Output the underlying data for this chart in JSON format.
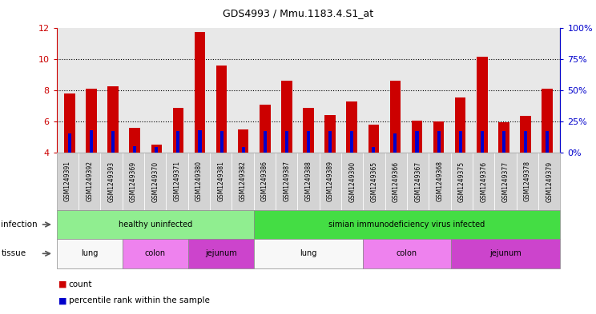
{
  "title": "GDS4993 / Mmu.1183.4.S1_at",
  "samples": [
    "GSM1249391",
    "GSM1249392",
    "GSM1249393",
    "GSM1249369",
    "GSM1249370",
    "GSM1249371",
    "GSM1249380",
    "GSM1249381",
    "GSM1249382",
    "GSM1249386",
    "GSM1249387",
    "GSM1249388",
    "GSM1249389",
    "GSM1249390",
    "GSM1249365",
    "GSM1249366",
    "GSM1249367",
    "GSM1249368",
    "GSM1249375",
    "GSM1249376",
    "GSM1249377",
    "GSM1249378",
    "GSM1249379"
  ],
  "counts": [
    7.8,
    8.1,
    8.25,
    5.6,
    4.5,
    6.85,
    11.75,
    9.6,
    5.45,
    7.05,
    8.6,
    6.85,
    6.4,
    7.3,
    5.8,
    8.6,
    6.05,
    6.0,
    7.55,
    10.15,
    5.95,
    6.35,
    8.1
  ],
  "percentiles": [
    15,
    18,
    17,
    5,
    4,
    17,
    18,
    17,
    4,
    17,
    17,
    17,
    17,
    17,
    4,
    15,
    17,
    17,
    17,
    17,
    17,
    17,
    17
  ],
  "bar_color": "#cc0000",
  "blue_color": "#0000cc",
  "ylim_left": [
    4,
    12
  ],
  "ylim_right": [
    0,
    100
  ],
  "yticks_left": [
    4,
    6,
    8,
    10,
    12
  ],
  "yticks_right": [
    0,
    25,
    50,
    75,
    100
  ],
  "infection_groups": [
    {
      "label": "healthy uninfected",
      "start": 0,
      "end": 8,
      "color": "#90ee90"
    },
    {
      "label": "simian immunodeficiency virus infected",
      "start": 9,
      "end": 22,
      "color": "#44dd44"
    }
  ],
  "tissue_groups": [
    {
      "label": "lung",
      "start": 0,
      "end": 2,
      "color": "#f8f8f8"
    },
    {
      "label": "colon",
      "start": 3,
      "end": 5,
      "color": "#ee82ee"
    },
    {
      "label": "jejunum",
      "start": 6,
      "end": 8,
      "color": "#cc44cc"
    },
    {
      "label": "lung",
      "start": 9,
      "end": 13,
      "color": "#f8f8f8"
    },
    {
      "label": "colon",
      "start": 14,
      "end": 17,
      "color": "#ee82ee"
    },
    {
      "label": "jejunum",
      "start": 18,
      "end": 22,
      "color": "#cc44cc"
    }
  ],
  "legend_count_label": "count",
  "legend_pct_label": "percentile rank within the sample",
  "infection_label": "infection",
  "tissue_label": "tissue",
  "bar_width": 0.5,
  "blue_bar_width": 0.15,
  "axis_color_left": "#cc0000",
  "axis_color_right": "#0000cc",
  "plot_bg_color": "#e8e8e8",
  "xtick_bg_color": "#d3d3d3",
  "grid_yticks": [
    6,
    8,
    10
  ]
}
